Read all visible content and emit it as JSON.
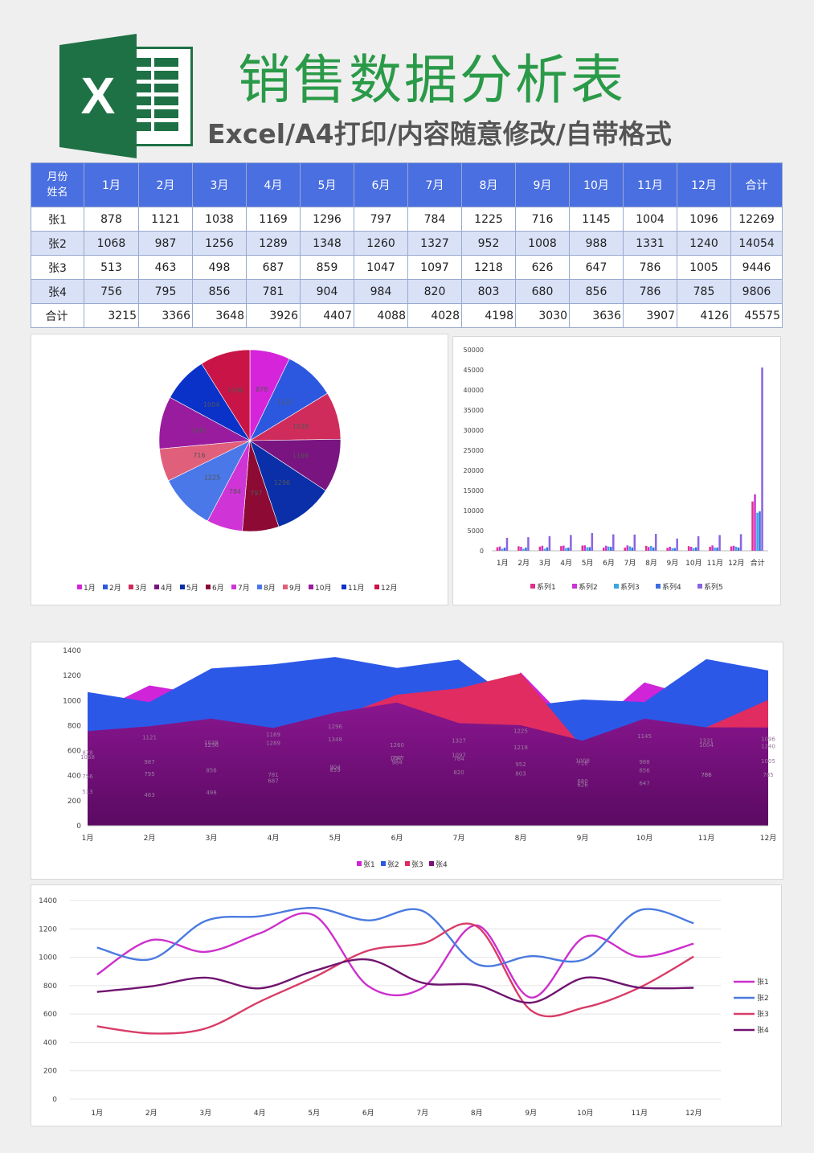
{
  "header": {
    "logo_letter": "X",
    "title": "销售数据分析表",
    "subtitle": "Excel/A4打印/内容随意修改/自带格式"
  },
  "table": {
    "corner_top": "月份",
    "corner_bottom": "姓名",
    "columns": [
      "1月",
      "2月",
      "3月",
      "4月",
      "5月",
      "6月",
      "7月",
      "8月",
      "9月",
      "10月",
      "11月",
      "12月",
      "合计"
    ],
    "rows": [
      {
        "name": "张1",
        "values": [
          "878",
          "1121",
          "1038",
          "1169",
          "1296",
          "797",
          "784",
          "1225",
          "716",
          "1145",
          "1004",
          "1096",
          "12269"
        ]
      },
      {
        "name": "张2",
        "values": [
          "1068",
          "987",
          "1256",
          "1289",
          "1348",
          "1260",
          "1327",
          "952",
          "1008",
          "988",
          "1331",
          "1240",
          "14054"
        ]
      },
      {
        "name": "张3",
        "values": [
          "513",
          "463",
          "498",
          "687",
          "859",
          "1047",
          "1097",
          "1218",
          "626",
          "647",
          "786",
          "1005",
          "9446"
        ]
      },
      {
        "name": "张4",
        "values": [
          "756",
          "795",
          "856",
          "781",
          "904",
          "984",
          "820",
          "803",
          "680",
          "856",
          "786",
          "785",
          "9806"
        ]
      },
      {
        "name": "合计",
        "values": [
          "3215",
          "3366",
          "3648",
          "3926",
          "4407",
          "4088",
          "4028",
          "4198",
          "3030",
          "3636",
          "3907",
          "4126",
          "45575"
        ]
      }
    ]
  },
  "chart_data": [
    {
      "type": "pie",
      "categories": [
        "1月",
        "2月",
        "3月",
        "4月",
        "5月",
        "6月",
        "7月",
        "8月",
        "9月",
        "10月",
        "11月",
        "12月"
      ],
      "values": [
        878,
        1121,
        1038,
        1169,
        1296,
        797,
        784,
        1225,
        716,
        1145,
        1004,
        1096
      ],
      "colors": [
        "#d524d9",
        "#2c58e0",
        "#cf2c5c",
        "#7a1480",
        "#0a2fa8",
        "#8c0a34",
        "#cf34d6",
        "#4a78e8",
        "#e0607c",
        "#9a1c9e",
        "#0a32c8",
        "#c81446"
      ],
      "legend_position": "bottom"
    },
    {
      "type": "bar",
      "categories": [
        "1月",
        "2月",
        "3月",
        "4月",
        "5月",
        "6月",
        "7月",
        "8月",
        "9月",
        "10月",
        "11月",
        "12月",
        "合计"
      ],
      "series": [
        {
          "name": "系列1",
          "values": [
            878,
            1121,
            1038,
            1169,
            1296,
            797,
            784,
            1225,
            716,
            1145,
            1004,
            1096,
            12269
          ],
          "color": "#e0308a"
        },
        {
          "name": "系列2",
          "values": [
            1068,
            987,
            1256,
            1289,
            1348,
            1260,
            1327,
            952,
            1008,
            988,
            1331,
            1240,
            14054
          ],
          "color": "#c834d6"
        },
        {
          "name": "系列3",
          "values": [
            513,
            463,
            498,
            687,
            859,
            1047,
            1097,
            1218,
            626,
            647,
            786,
            1005,
            9446
          ],
          "color": "#38a8e0"
        },
        {
          "name": "系列4",
          "values": [
            756,
            795,
            856,
            781,
            904,
            984,
            820,
            803,
            680,
            856,
            786,
            785,
            9806
          ],
          "color": "#3c6ee0"
        },
        {
          "name": "系列5",
          "values": [
            3215,
            3366,
            3648,
            3926,
            4407,
            4088,
            4028,
            4198,
            3030,
            3636,
            3907,
            4126,
            45575
          ],
          "color": "#8a64e0"
        }
      ],
      "yticks": [
        "0",
        "5000",
        "10000",
        "15000",
        "20000",
        "25000",
        "30000",
        "35000",
        "40000",
        "45000",
        "50000"
      ],
      "ylim": [
        0,
        50000
      ],
      "legend_position": "bottom"
    },
    {
      "type": "area",
      "categories": [
        "1月",
        "2月",
        "3月",
        "4月",
        "5月",
        "6月",
        "7月",
        "8月",
        "9月",
        "10月",
        "11月",
        "12月"
      ],
      "series": [
        {
          "name": "张1",
          "values": [
            878,
            1121,
            1038,
            1169,
            1296,
            797,
            784,
            1225,
            716,
            1145,
            1004,
            1096
          ],
          "color": "#d024d8"
        },
        {
          "name": "张2",
          "values": [
            1068,
            987,
            1256,
            1289,
            1348,
            1260,
            1327,
            952,
            1008,
            988,
            1331,
            1240
          ],
          "color": "#2c58e8"
        },
        {
          "name": "张3",
          "values": [
            513,
            463,
            498,
            687,
            859,
            1047,
            1097,
            1218,
            626,
            647,
            786,
            1005
          ],
          "color": "#e02c60"
        },
        {
          "name": "张4",
          "values": [
            756,
            795,
            856,
            781,
            904,
            984,
            820,
            803,
            680,
            856,
            786,
            785
          ],
          "color": "#7a1078"
        }
      ],
      "yticks": [
        "0",
        "200",
        "400",
        "600",
        "800",
        "1000",
        "1200",
        "1400"
      ],
      "ylim": [
        0,
        1400
      ],
      "legend_position": "bottom"
    },
    {
      "type": "line",
      "categories": [
        "1月",
        "2月",
        "3月",
        "4月",
        "5月",
        "6月",
        "7月",
        "8月",
        "9月",
        "10月",
        "11月",
        "12月"
      ],
      "series": [
        {
          "name": "张1",
          "values": [
            878,
            1121,
            1038,
            1169,
            1296,
            797,
            784,
            1225,
            716,
            1145,
            1004,
            1096
          ],
          "color": "#cc30cc"
        },
        {
          "name": "张2",
          "values": [
            1068,
            987,
            1256,
            1289,
            1348,
            1260,
            1327,
            952,
            1008,
            988,
            1331,
            1240
          ],
          "color": "#4a7ae0"
        },
        {
          "name": "张3",
          "values": [
            513,
            463,
            498,
            687,
            859,
            1047,
            1097,
            1218,
            626,
            647,
            786,
            1005
          ],
          "color": "#d83c68"
        },
        {
          "name": "张4",
          "values": [
            756,
            795,
            856,
            781,
            904,
            984,
            820,
            803,
            680,
            856,
            786,
            785
          ],
          "color": "#701470"
        }
      ],
      "yticks": [
        "0",
        "200",
        "400",
        "600",
        "800",
        "1000",
        "1200",
        "1400"
      ],
      "ylim": [
        0,
        1400
      ],
      "legend_position": "right"
    }
  ]
}
